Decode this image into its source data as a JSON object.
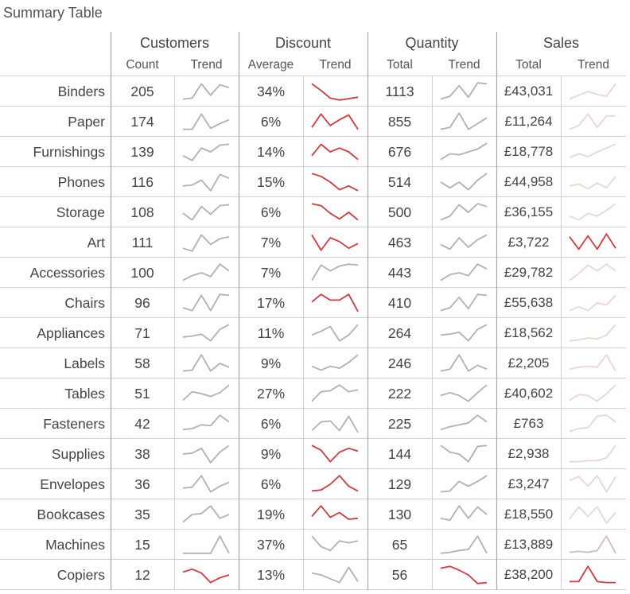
{
  "title": "Summary Table",
  "groups": [
    {
      "label": "Customers",
      "sub": [
        "Count",
        "Trend"
      ]
    },
    {
      "label": "Discount",
      "sub": [
        "Average",
        "Trend"
      ]
    },
    {
      "label": "Quantity",
      "sub": [
        "Total",
        "Trend"
      ]
    },
    {
      "label": "Sales",
      "sub": [
        "Total",
        "Trend"
      ]
    }
  ],
  "colors": {
    "grey_trend": "#b3b0b0",
    "red_trend": "#d23a3f",
    "light_red_trend": "#e8d6d3",
    "mid_red_trend": "#cdbdba",
    "grid": "#d0d0d0",
    "grid_strong": "#a8a8a8"
  },
  "rows": [
    {
      "label": "Binders",
      "customers": "205",
      "discount": "34%",
      "quantity": "1113",
      "sales": "£43,031",
      "c_trend": [
        0.1,
        0.15,
        0.9,
        0.3,
        0.85,
        0.7
      ],
      "d_trend": [
        0.9,
        0.55,
        0.15,
        0.05,
        0.12,
        0.2
      ],
      "q_trend": [
        0.1,
        0.25,
        0.8,
        0.2,
        0.95,
        0.9
      ],
      "s_trend": [
        0.1,
        0.3,
        0.5,
        0.35,
        0.25,
        0.9
      ],
      "d_color": "red",
      "s_color": "light_red"
    },
    {
      "label": "Paper",
      "customers": "174",
      "discount": "6%",
      "quantity": "855",
      "sales": "£11,264",
      "c_trend": [
        0.1,
        0.1,
        0.9,
        0.15,
        0.4,
        0.6
      ],
      "d_trend": [
        0.2,
        0.9,
        0.3,
        0.6,
        0.85,
        0.1
      ],
      "q_trend": [
        0.1,
        0.2,
        0.95,
        0.1,
        0.4,
        0.7
      ],
      "s_trend": [
        0.1,
        0.3,
        0.9,
        0.2,
        0.8,
        0.8
      ],
      "d_color": "red",
      "s_color": "light_red"
    },
    {
      "label": "Furnishings",
      "customers": "139",
      "discount": "14%",
      "quantity": "676",
      "sales": "£18,778",
      "c_trend": [
        0.3,
        0.05,
        0.7,
        0.5,
        0.85,
        0.9
      ],
      "d_trend": [
        0.3,
        0.9,
        0.5,
        0.7,
        0.5,
        0.1
      ],
      "q_trend": [
        0.1,
        0.4,
        0.35,
        0.5,
        0.65,
        0.95
      ],
      "s_trend": [
        0.2,
        0.4,
        0.25,
        0.5,
        0.7,
        0.9
      ],
      "d_color": "red",
      "s_color": "light_red"
    },
    {
      "label": "Phones",
      "customers": "116",
      "discount": "15%",
      "quantity": "514",
      "sales": "£44,958",
      "c_trend": [
        0.3,
        0.35,
        0.6,
        0.05,
        0.9,
        0.7
      ],
      "d_trend": [
        0.95,
        0.8,
        0.5,
        0.1,
        0.3,
        0.05
      ],
      "q_trend": [
        0.5,
        0.2,
        0.5,
        0.1,
        0.6,
        0.95
      ],
      "s_trend": [
        0.3,
        0.4,
        0.15,
        0.45,
        0.2,
        0.8
      ],
      "d_color": "red",
      "s_color": "light_red"
    },
    {
      "label": "Storage",
      "customers": "108",
      "discount": "6%",
      "quantity": "500",
      "sales": "£36,155",
      "c_trend": [
        0.45,
        0.1,
        0.8,
        0.4,
        0.85,
        0.9
      ],
      "d_trend": [
        0.95,
        0.85,
        0.45,
        0.15,
        0.5,
        0.1
      ],
      "q_trend": [
        0.1,
        0.3,
        0.9,
        0.5,
        0.95,
        0.8
      ],
      "s_trend": [
        0.3,
        0.1,
        0.45,
        0.3,
        0.6,
        0.95
      ],
      "d_color": "red",
      "s_color": "light_red"
    },
    {
      "label": "Art",
      "customers": "111",
      "discount": "7%",
      "quantity": "463",
      "sales": "£3,722",
      "c_trend": [
        0.2,
        0.05,
        0.9,
        0.4,
        0.7,
        0.8
      ],
      "d_trend": [
        0.9,
        0.1,
        0.75,
        0.55,
        0.2,
        0.45
      ],
      "q_trend": [
        0.4,
        0.15,
        0.75,
        0.25,
        0.65,
        0.9
      ],
      "s_trend": [
        0.8,
        0.15,
        0.85,
        0.15,
        0.95,
        0.2
      ],
      "d_color": "red",
      "s_color": "red"
    },
    {
      "label": "Accessories",
      "customers": "100",
      "discount": "7%",
      "quantity": "443",
      "sales": "£29,782",
      "c_trend": [
        0.1,
        0.35,
        0.5,
        0.3,
        0.95,
        0.6
      ],
      "d_trend": [
        0.1,
        0.9,
        0.6,
        0.85,
        0.95,
        0.9
      ],
      "q_trend": [
        0.1,
        0.4,
        0.5,
        0.35,
        0.95,
        0.7
      ],
      "s_trend": [
        0.1,
        0.45,
        0.9,
        0.6,
        0.95,
        0.6
      ],
      "d_color": "grey",
      "s_color": "light_red"
    },
    {
      "label": "Chairs",
      "customers": "96",
      "discount": "17%",
      "quantity": "410",
      "sales": "£55,638",
      "c_trend": [
        0.25,
        0.1,
        0.9,
        0.1,
        0.95,
        0.9
      ],
      "d_trend": [
        0.55,
        0.95,
        0.65,
        0.65,
        0.95,
        0.05
      ],
      "q_trend": [
        0.1,
        0.25,
        0.8,
        0.2,
        0.95,
        0.9
      ],
      "s_trend": [
        0.1,
        0.3,
        0.1,
        0.5,
        0.4,
        0.9
      ],
      "d_color": "red",
      "s_color": "light_red"
    },
    {
      "label": "Appliances",
      "customers": "71",
      "discount": "11%",
      "quantity": "264",
      "sales": "£18,562",
      "c_trend": [
        0.3,
        0.35,
        0.45,
        0.1,
        0.7,
        0.95
      ],
      "d_trend": [
        0.4,
        0.6,
        0.85,
        0.1,
        0.4,
        0.95
      ],
      "q_trend": [
        0.4,
        0.45,
        0.55,
        0.1,
        0.7,
        0.95
      ],
      "s_trend": [
        0.1,
        0.15,
        0.25,
        0.2,
        0.4,
        0.95
      ],
      "d_color": "grey",
      "s_color": "light_red"
    },
    {
      "label": "Labels",
      "customers": "58",
      "discount": "9%",
      "quantity": "246",
      "sales": "£2,205",
      "c_trend": [
        0.1,
        0.15,
        0.95,
        0.1,
        0.5,
        0.3
      ],
      "d_trend": [
        0.35,
        0.15,
        0.35,
        0.25,
        0.55,
        0.95
      ],
      "q_trend": [
        0.1,
        0.2,
        0.95,
        0.1,
        0.4,
        0.2
      ],
      "s_trend": [
        0.2,
        0.3,
        0.35,
        0.3,
        0.95,
        0.1
      ],
      "d_color": "grey",
      "s_color": "light_red"
    },
    {
      "label": "Tables",
      "customers": "51",
      "discount": "27%",
      "quantity": "222",
      "sales": "£40,602",
      "c_trend": [
        0.15,
        0.6,
        0.5,
        0.35,
        0.55,
        0.95
      ],
      "d_trend": [
        0.1,
        0.6,
        0.65,
        0.95,
        0.6,
        0.7
      ],
      "q_trend": [
        0.4,
        0.55,
        0.4,
        0.1,
        0.55,
        0.95
      ],
      "s_trend": [
        0.15,
        0.45,
        0.4,
        0.1,
        0.5,
        0.95
      ],
      "d_color": "grey",
      "s_color": "light_red"
    },
    {
      "label": "Fasteners",
      "customers": "42",
      "discount": "6%",
      "quantity": "225",
      "sales": "£763",
      "c_trend": [
        0.2,
        0.25,
        0.45,
        0.4,
        0.95,
        0.6
      ],
      "d_trend": [
        0.15,
        0.6,
        0.65,
        0.15,
        0.9,
        0.05
      ],
      "q_trend": [
        0.2,
        0.35,
        0.45,
        0.55,
        0.95,
        0.6
      ],
      "s_trend": [
        0.1,
        0.25,
        0.3,
        0.9,
        0.95,
        0.6
      ],
      "d_color": "grey",
      "s_color": "light_red"
    },
    {
      "label": "Supplies",
      "customers": "38",
      "discount": "9%",
      "quantity": "144",
      "sales": "£2,938",
      "c_trend": [
        0.5,
        0.55,
        0.8,
        0.05,
        0.6,
        0.95
      ],
      "d_trend": [
        0.95,
        0.7,
        0.1,
        0.6,
        0.8,
        0.65
      ],
      "q_trend": [
        0.95,
        0.6,
        0.5,
        0.1,
        0.9,
        0.95
      ],
      "s_trend": [
        0.1,
        0.1,
        0.15,
        0.15,
        0.3,
        0.95
      ],
      "d_color": "red",
      "s_color": "light_red"
    },
    {
      "label": "Envelopes",
      "customers": "36",
      "discount": "6%",
      "quantity": "129",
      "sales": "£3,247",
      "c_trend": [
        0.3,
        0.35,
        0.95,
        0.1,
        0.4,
        0.6
      ],
      "d_trend": [
        0.15,
        0.2,
        0.5,
        0.95,
        0.4,
        0.15
      ],
      "q_trend": [
        0.1,
        0.15,
        0.65,
        0.4,
        0.65,
        0.95
      ],
      "s_trend": [
        0.7,
        0.9,
        0.4,
        0.95,
        0.1,
        0.9
      ],
      "d_color": "red",
      "s_color": "light_red"
    },
    {
      "label": "Bookcases",
      "customers": "35",
      "discount": "19%",
      "quantity": "130",
      "sales": "£18,550",
      "c_trend": [
        0.1,
        0.5,
        0.55,
        0.95,
        0.3,
        0.5
      ],
      "d_trend": [
        0.4,
        0.95,
        0.35,
        0.6,
        0.25,
        0.3
      ],
      "q_trend": [
        0.3,
        0.2,
        0.95,
        0.3,
        0.9,
        0.5
      ],
      "s_trend": [
        0.25,
        0.9,
        0.4,
        0.9,
        0.05,
        0.6
      ],
      "d_color": "red",
      "s_color": "light_red"
    },
    {
      "label": "Machines",
      "customers": "15",
      "discount": "37%",
      "quantity": "65",
      "sales": "£13,889",
      "c_trend": [
        0.05,
        0.05,
        0.05,
        0.05,
        0.95,
        0.05
      ],
      "d_trend": [
        0.95,
        0.4,
        0.2,
        0.7,
        0.6,
        0.7
      ],
      "q_trend": [
        0.05,
        0.1,
        0.2,
        0.25,
        0.95,
        0.05
      ],
      "s_trend": [
        0.1,
        0.15,
        0.1,
        0.2,
        0.95,
        0.05
      ],
      "d_color": "grey",
      "s_color": "mid_red"
    },
    {
      "label": "Copiers",
      "customers": "12",
      "discount": "13%",
      "quantity": "56",
      "sales": "£38,200",
      "c_trend": [
        0.65,
        0.8,
        0.6,
        0.1,
        0.35,
        0.5
      ],
      "d_trend": [
        0.6,
        0.5,
        0.3,
        0.1,
        0.9,
        0.15
      ],
      "q_trend": [
        0.85,
        0.95,
        0.75,
        0.5,
        0.05,
        0.1
      ],
      "s_trend": [
        0.15,
        0.15,
        0.95,
        0.15,
        0.1,
        0.1
      ],
      "c_color": "red",
      "d_color": "grey",
      "q_color": "red",
      "s_color": "red"
    }
  ]
}
